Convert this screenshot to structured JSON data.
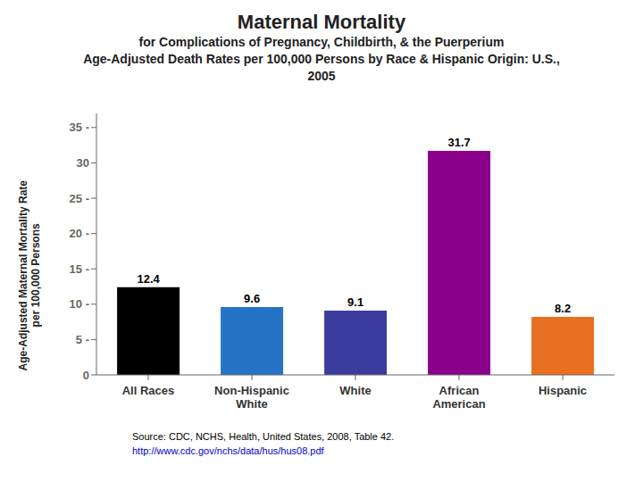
{
  "chart_data": {
    "type": "bar",
    "title": "Maternal Mortality",
    "subtitle": [
      "for Complications of Pregnancy, Childbirth, & the Puerperium",
      "Age-Adjusted Death Rates per 100,000 Persons by Race & Hispanic Origin: U.S.,",
      "2005"
    ],
    "categories": [
      "All Races",
      "Non-Hispanic\nWhite",
      "White",
      "African\nAmerican",
      "Hispanic"
    ],
    "values": [
      12.4,
      9.6,
      9.1,
      31.7,
      8.2
    ],
    "colors": [
      "#000000",
      "#2473C5",
      "#3C3C9E",
      "#8B008B",
      "#E87020"
    ],
    "ylabel": "Age-Adjusted Maternal Mortality Rate\nper 100,000 Persons",
    "ylim": [
      0,
      37
    ],
    "yticks": [
      0,
      {
        "value": 5,
        "label": "5 -"
      },
      {
        "value": 10,
        "label": "10 -"
      },
      {
        "value": 15,
        "label": "15 -"
      },
      {
        "value": 20,
        "label": "20 -"
      },
      {
        "value": 25,
        "label": "25 -"
      },
      30,
      {
        "value": 35,
        "label": "35 -"
      }
    ],
    "grid": false,
    "data_labels": true,
    "annotations": [
      "Source: CDC, NCHS, Health, United States, 2008, Table 42.",
      "http://www.cdc.gov/nchs/data/hus/hus08.pdf"
    ]
  }
}
